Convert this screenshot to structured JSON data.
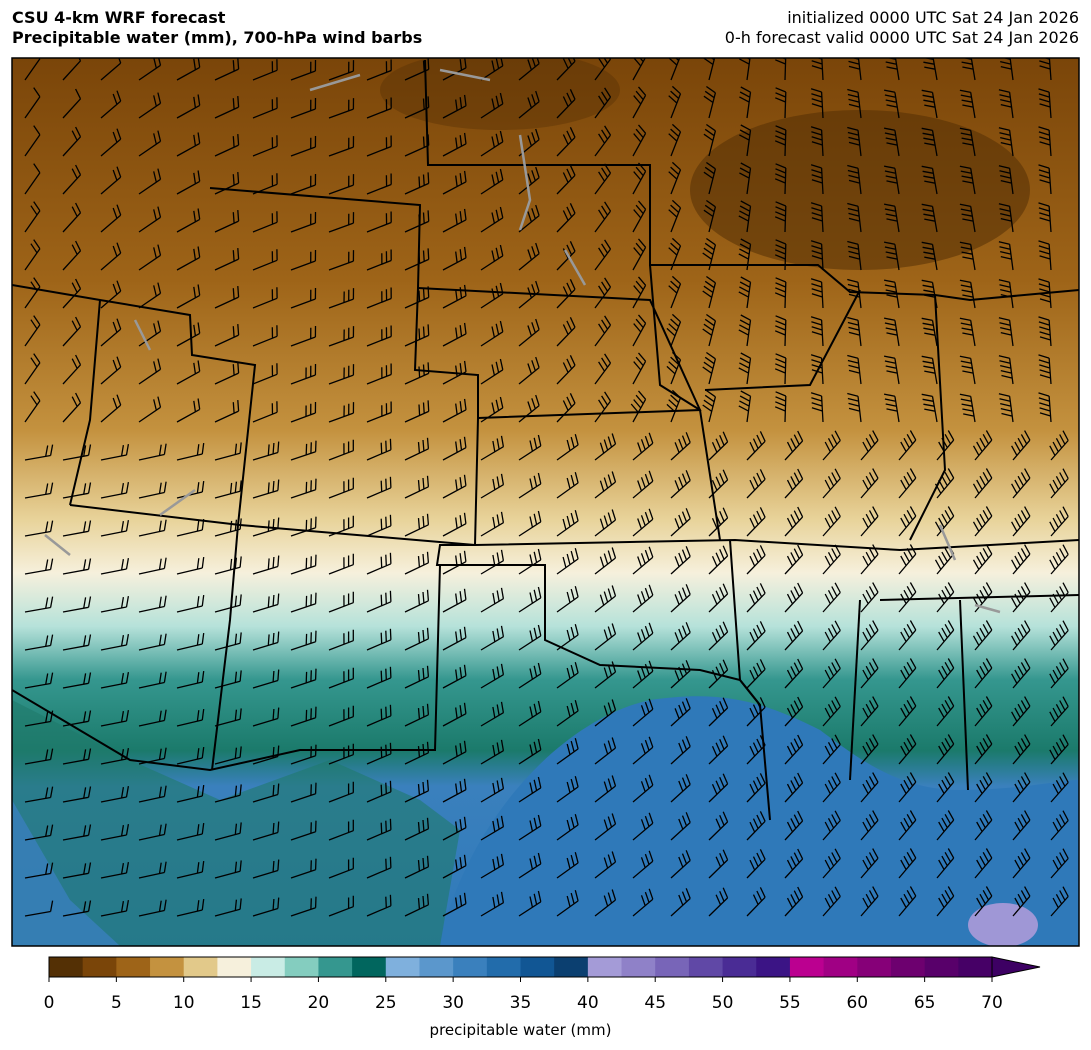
{
  "header": {
    "title_lines": [
      "CSU 4-km WRF forecast",
      "Precipitable water (mm), 700-hPa wind barbs"
    ],
    "info_lines": [
      "initialized 0000 UTC Sat 24 Jan 2026",
      "0-h forecast valid 0000 UTC Sat 24 Jan 2026"
    ]
  },
  "colorbar": {
    "range": [
      0,
      70
    ],
    "ticks": [
      0,
      5,
      10,
      15,
      20,
      25,
      30,
      35,
      40,
      45,
      50,
      55,
      60,
      65,
      70
    ],
    "label": "precipitable water (mm)",
    "colors": [
      "#543005",
      "#7a4509",
      "#9e6418",
      "#c4923f",
      "#e2c98a",
      "#f6f0dc",
      "#c9ece5",
      "#84cdbf",
      "#35978f",
      "#01665e",
      "#7fb0dd",
      "#5b97cc",
      "#3a80bd",
      "#226cab",
      "#115694",
      "#0b3f70",
      "#a49bd7",
      "#8f81c8",
      "#7865b8",
      "#6048a6",
      "#4a2c95",
      "#3b1485",
      "#bb0090",
      "#a00084",
      "#860078",
      "#6d006f",
      "#58006a",
      "#460066"
    ],
    "extend_color": "#3d0063"
  }
}
